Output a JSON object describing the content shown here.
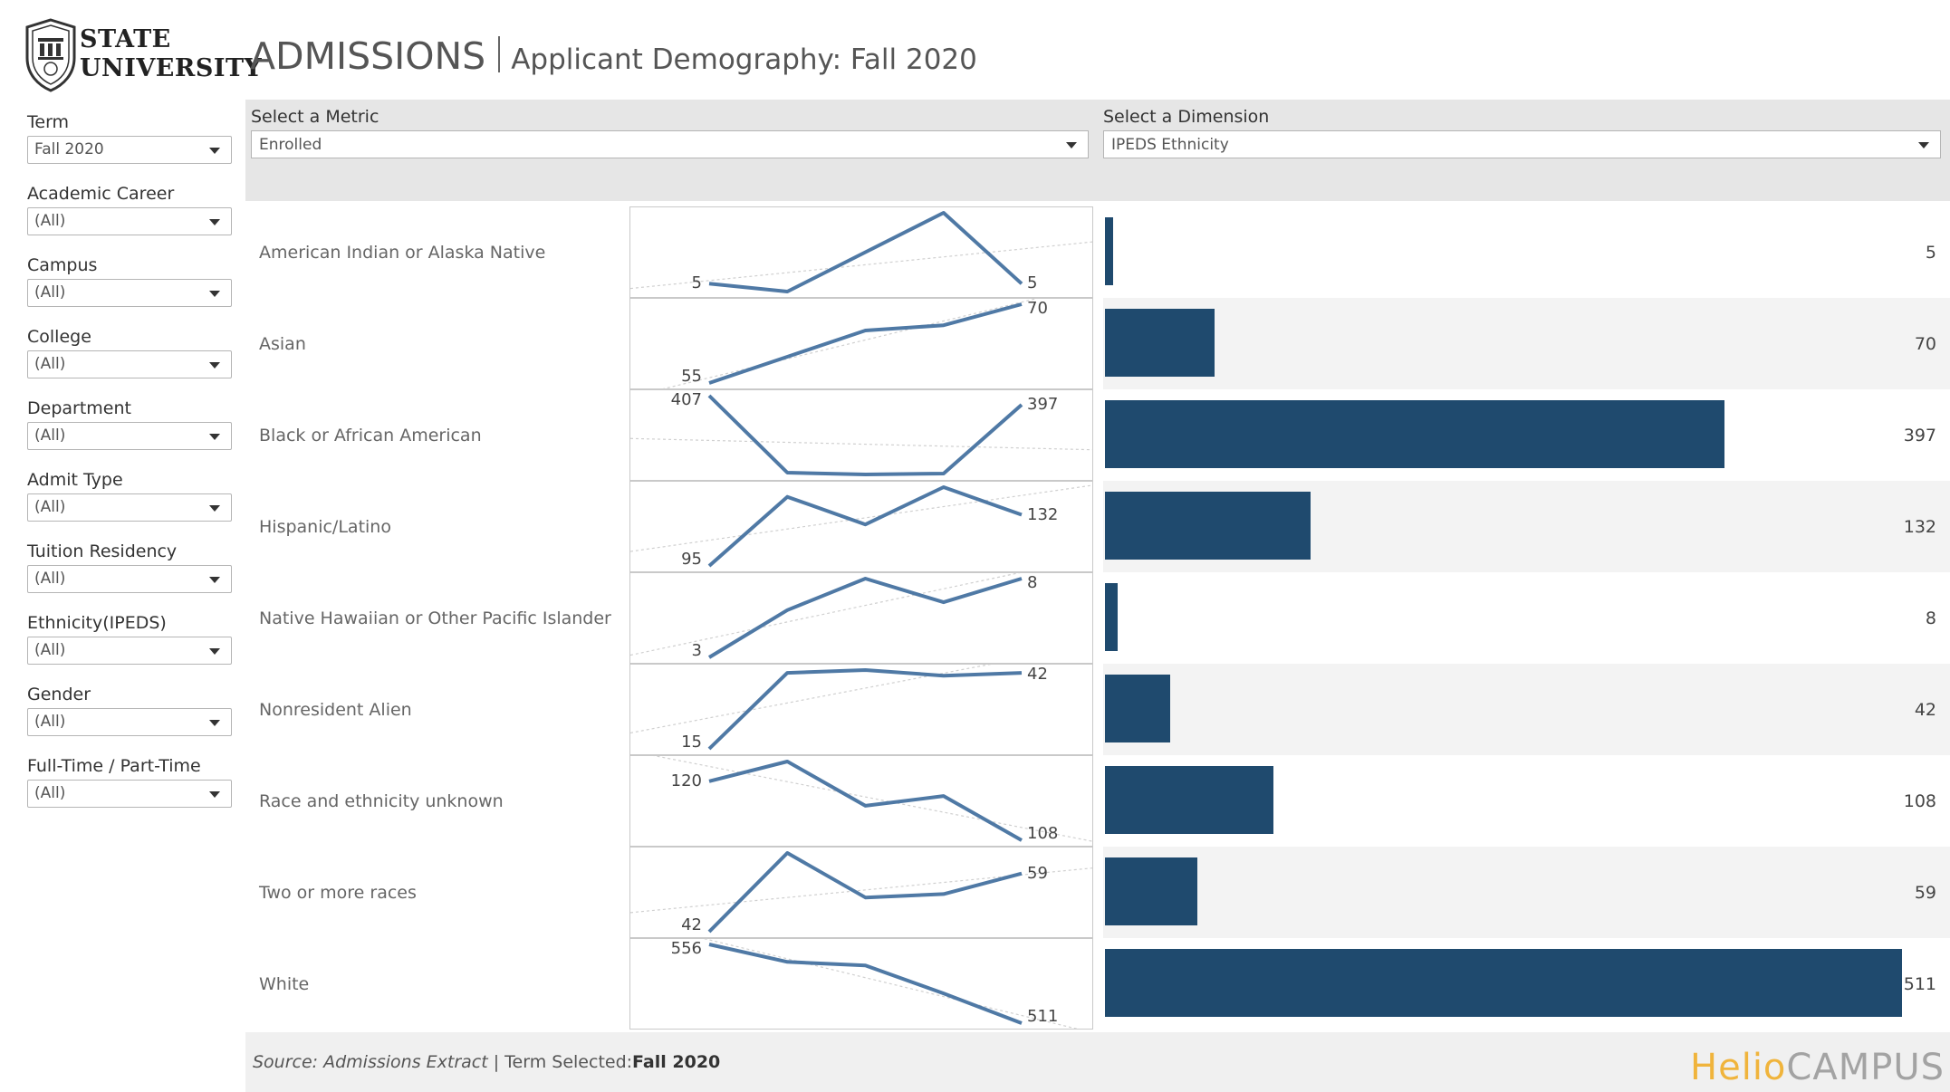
{
  "header": {
    "logo_line1": "STATE",
    "logo_line2": "UNIVERSITY",
    "title": "ADMISSIONS",
    "subtitle": "Applicant Demography: Fall 2020"
  },
  "filters": [
    {
      "label": "Term",
      "value": "Fall 2020"
    },
    {
      "label": "Academic Career",
      "value": "(All)"
    },
    {
      "label": "Campus",
      "value": "(All)"
    },
    {
      "label": "College",
      "value": "(All)"
    },
    {
      "label": "Department",
      "value": "(All)"
    },
    {
      "label": "Admit Type",
      "value": "(All)"
    },
    {
      "label": "Tuition Residency",
      "value": "(All)"
    },
    {
      "label": "Ethnicity(IPEDS)",
      "value": "(All)"
    },
    {
      "label": "Gender",
      "value": "(All)"
    },
    {
      "label": "Full-Time / Part-Time",
      "value": "(All)"
    }
  ],
  "controls": {
    "metric_label": "Select a Metric",
    "metric_value": "Enrolled",
    "dimension_label": "Select a Dimension",
    "dimension_value": "IPEDS Ethnicity"
  },
  "chart_data": {
    "type": "bar",
    "categories": [
      "American Indian or Alaska Native",
      "Asian",
      "Black or African American",
      "Hispanic/Latino",
      "Native Hawaiian or Other Pacific Islander",
      "Nonresident Alien",
      "Race and ethnicity unknown",
      "Two or more races",
      "White"
    ],
    "values": [
      5,
      70,
      397,
      132,
      8,
      42,
      108,
      59,
      511
    ],
    "xlim": [
      0,
      511
    ],
    "sparklines": [
      {
        "values": [
          5,
          4,
          9,
          14,
          5
        ],
        "start_label": "5",
        "end_label": "5"
      },
      {
        "values": [
          55,
          60,
          65,
          66,
          70
        ],
        "start_label": "55",
        "end_label": "70"
      },
      {
        "values": [
          407,
          322,
          320,
          321,
          397
        ],
        "start_label": "407",
        "end_label": "397"
      },
      {
        "values": [
          95,
          145,
          125,
          152,
          132
        ],
        "start_label": "95",
        "end_label": "132"
      },
      {
        "values": [
          3,
          6,
          8,
          6.5,
          8
        ],
        "start_label": "3",
        "end_label": "8"
      },
      {
        "values": [
          15,
          42,
          43,
          41,
          42
        ],
        "start_label": "15",
        "end_label": "42"
      },
      {
        "values": [
          120,
          124,
          115,
          117,
          108
        ],
        "start_label": "120",
        "end_label": "108"
      },
      {
        "values": [
          42,
          65,
          52,
          53,
          59
        ],
        "start_label": "42",
        "end_label": "59"
      },
      {
        "values": [
          556,
          546,
          544,
          528,
          511
        ],
        "start_label": "556",
        "end_label": "511"
      }
    ],
    "line_color": "#4f79a5",
    "bar_color": "#1f4a6e"
  },
  "footer": {
    "source": "Source: Admissions Extract",
    "term_prefix": " | Term Selected:",
    "term_value": "Fall 2020",
    "brand_part1": "Helio",
    "brand_part2": "CAMPUS"
  }
}
